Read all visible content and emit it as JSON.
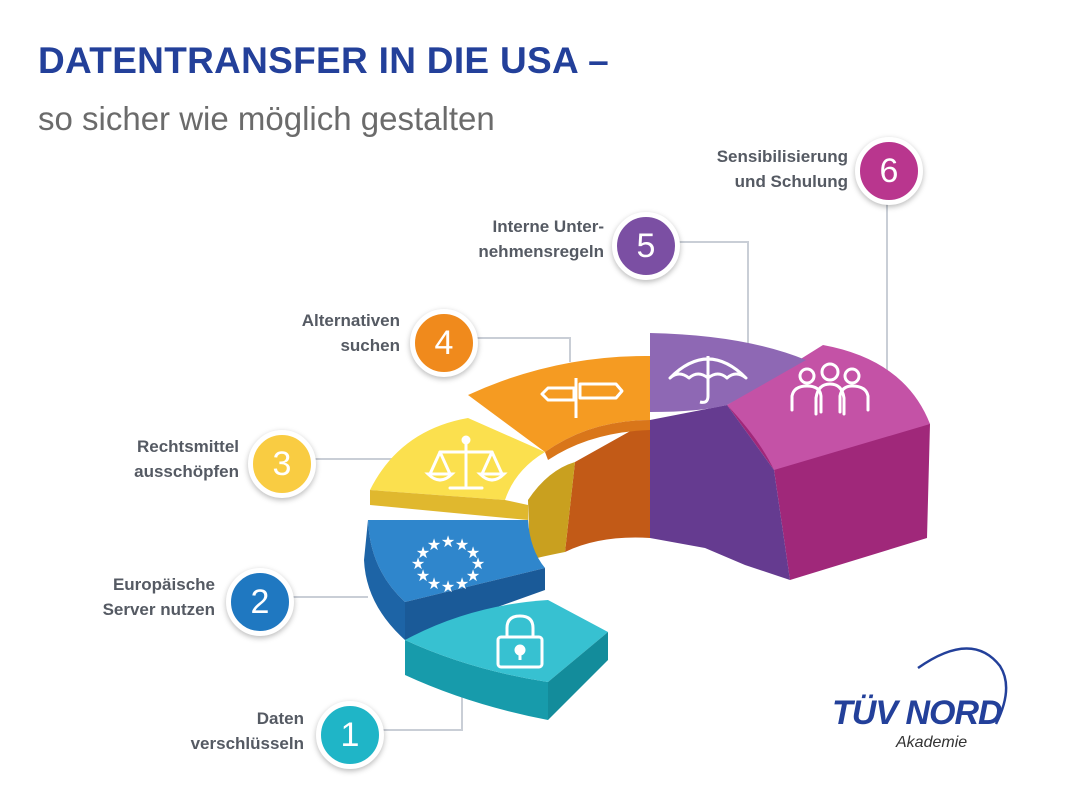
{
  "header": {
    "title": "DATENTRANSFER IN DIE USA –",
    "subtitle": "so sicher wie möglich gestalten"
  },
  "steps": [
    {
      "number": "1",
      "label_lines": [
        "Daten",
        "verschlüsseln"
      ],
      "color": "#1fb5c7",
      "icon": "padlock-icon"
    },
    {
      "number": "2",
      "label_lines": [
        "Europäische",
        "Server nutzen"
      ],
      "color": "#1f78c1",
      "icon": "eu-stars-icon"
    },
    {
      "number": "3",
      "label_lines": [
        "Rechtsmittel",
        "ausschöpfen"
      ],
      "color": "#f9cc42",
      "icon": "scales-icon"
    },
    {
      "number": "4",
      "label_lines": [
        "Alternativen",
        "suchen"
      ],
      "color": "#f08a1c",
      "icon": "signpost-icon"
    },
    {
      "number": "5",
      "label_lines": [
        "Interne Unter-",
        "nehmensregeln"
      ],
      "color": "#7b4fa3",
      "icon": "umbrella-icon"
    },
    {
      "number": "6",
      "label_lines": [
        "Sensibilisierung",
        "und Schulung"
      ],
      "color": "#b9368e",
      "icon": "group-icon"
    }
  ],
  "logo": {
    "brand": "TÜV NORD",
    "sub": "Akademie"
  }
}
